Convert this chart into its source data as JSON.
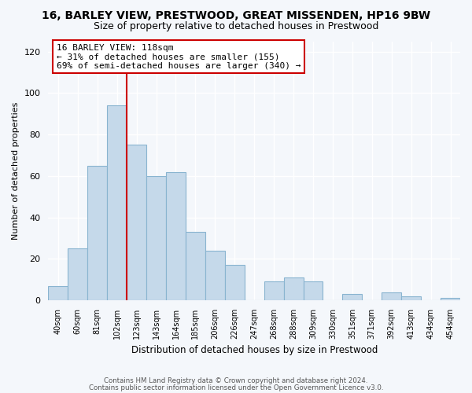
{
  "title": "16, BARLEY VIEW, PRESTWOOD, GREAT MISSENDEN, HP16 9BW",
  "subtitle": "Size of property relative to detached houses in Prestwood",
  "xlabel": "Distribution of detached houses by size in Prestwood",
  "ylabel": "Number of detached properties",
  "bar_labels": [
    "40sqm",
    "60sqm",
    "81sqm",
    "102sqm",
    "123sqm",
    "143sqm",
    "164sqm",
    "185sqm",
    "206sqm",
    "226sqm",
    "247sqm",
    "268sqm",
    "288sqm",
    "309sqm",
    "330sqm",
    "351sqm",
    "371sqm",
    "392sqm",
    "413sqm",
    "434sqm",
    "454sqm"
  ],
  "bar_values": [
    7,
    25,
    65,
    94,
    75,
    60,
    62,
    33,
    24,
    17,
    0,
    9,
    11,
    9,
    0,
    3,
    0,
    4,
    2,
    0,
    1
  ],
  "bar_color": "#c5d9ea",
  "bar_edge_color": "#89b4d0",
  "vline_x_index": 4,
  "vline_color": "#cc0000",
  "annotation_title": "16 BARLEY VIEW: 118sqm",
  "annotation_line1": "← 31% of detached houses are smaller (155)",
  "annotation_line2": "69% of semi-detached houses are larger (340) →",
  "annotation_box_color": "#ffffff",
  "annotation_box_edge": "#cc0000",
  "ylim": [
    0,
    125
  ],
  "yticks": [
    0,
    20,
    40,
    60,
    80,
    100,
    120
  ],
  "footnote1": "Contains HM Land Registry data © Crown copyright and database right 2024.",
  "footnote2": "Contains public sector information licensed under the Open Government Licence v3.0.",
  "background_color": "#f4f7fb",
  "grid_color": "#ffffff"
}
